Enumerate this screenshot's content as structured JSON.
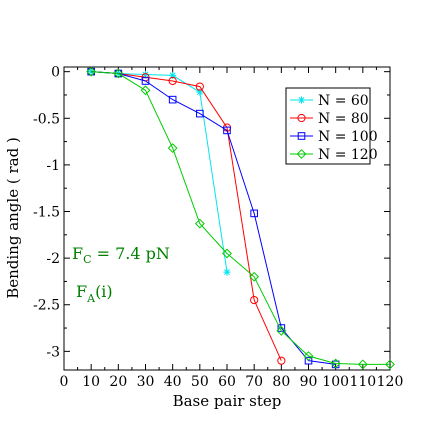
{
  "chart_data": {
    "type": "line",
    "title": "",
    "xlabel": "Base pair step",
    "ylabel": "Bending angle  ( rad )",
    "xlim": [
      0,
      120
    ],
    "ylim": [
      -3.2,
      0.05
    ],
    "x_ticks": [
      0,
      10,
      20,
      30,
      40,
      50,
      60,
      70,
      80,
      90,
      100,
      110,
      120
    ],
    "y_ticks": [
      0,
      -0.5,
      -1,
      -1.5,
      -2,
      -2.5,
      -3
    ],
    "y_tick_labels": [
      "0",
      "-0.5",
      "-1",
      "-1.5",
      "-2",
      "-2.5",
      "-3"
    ],
    "grid": false,
    "legend_position": "top-right",
    "series": [
      {
        "name": "N = 60",
        "color": "#00e5ee",
        "marker": "star",
        "x": [
          10,
          20,
          30,
          40,
          50,
          60
        ],
        "y": [
          0.0,
          -0.02,
          -0.03,
          -0.04,
          -0.22,
          -2.15
        ]
      },
      {
        "name": "N = 80",
        "color": "#ff0000",
        "marker": "circle",
        "x": [
          10,
          20,
          30,
          40,
          50,
          60,
          70,
          80
        ],
        "y": [
          0.0,
          -0.02,
          -0.06,
          -0.1,
          -0.16,
          -0.6,
          -2.45,
          -3.1
        ]
      },
      {
        "name": "N = 100",
        "color": "#0000ff",
        "marker": "square",
        "x": [
          10,
          20,
          30,
          40,
          50,
          60,
          70,
          80,
          90,
          100
        ],
        "y": [
          0.0,
          -0.02,
          -0.1,
          -0.3,
          -0.45,
          -0.63,
          -1.52,
          -2.75,
          -3.1,
          -3.14
        ]
      },
      {
        "name": "N = 120",
        "color": "#00cc00",
        "marker": "diamond",
        "x": [
          10,
          20,
          30,
          40,
          50,
          60,
          70,
          80,
          90,
          100,
          110,
          120
        ],
        "y": [
          0.0,
          -0.02,
          -0.2,
          -0.82,
          -1.63,
          -1.95,
          -2.2,
          -2.78,
          -3.05,
          -3.13,
          -3.14,
          -3.14
        ]
      }
    ],
    "annotations": {
      "force_main": "F",
      "force_sub": "C",
      "force_rest": " = 7.4 pN",
      "fa_main": "F",
      "fa_sub": "A",
      "fa_rest": "(i)"
    }
  }
}
